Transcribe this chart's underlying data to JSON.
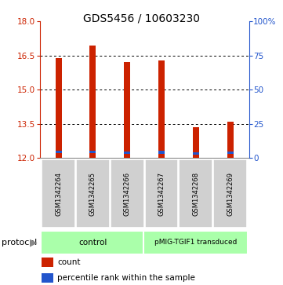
{
  "title": "GDS5456 / 10603230",
  "samples": [
    "GSM1342264",
    "GSM1342265",
    "GSM1342266",
    "GSM1342267",
    "GSM1342268",
    "GSM1342269"
  ],
  "bar_bottoms": [
    12.0,
    12.0,
    12.0,
    12.0,
    12.0,
    12.0
  ],
  "bar_tops": [
    16.4,
    16.95,
    16.2,
    16.3,
    13.35,
    13.6
  ],
  "blue_vals": [
    12.22,
    12.22,
    12.2,
    12.2,
    12.17,
    12.18
  ],
  "blue_heights": [
    0.1,
    0.1,
    0.1,
    0.12,
    0.1,
    0.1
  ],
  "ylim": [
    12,
    18
  ],
  "yticks_left": [
    12,
    13.5,
    15,
    16.5,
    18
  ],
  "yticks_right": [
    0,
    25,
    50,
    75,
    100
  ],
  "ylim_right": [
    0,
    100
  ],
  "bar_color": "#cc2200",
  "blue_color": "#2255cc",
  "bg_plot": "#ffffff",
  "bg_sample_labels": "#cccccc",
  "protocol_labels": [
    "control",
    "pMIG-TGIF1 transduced"
  ],
  "protocol_bg": "#aaffaa",
  "title_fontsize": 10,
  "bar_width": 0.18
}
